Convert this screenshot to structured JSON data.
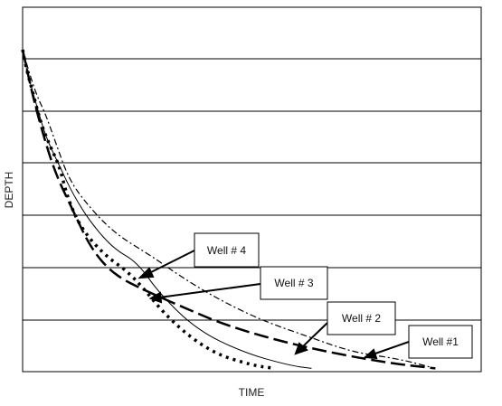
{
  "chart_data": {
    "type": "line",
    "title": "",
    "xlabel": "TIME",
    "ylabel": "DEPTH",
    "grid": "horizontal",
    "legend": "callouts",
    "series": [
      {
        "name": "Well # 4",
        "style": "dotted-heavy",
        "points": [
          [
            0,
            0
          ],
          [
            0.01,
            0.07
          ],
          [
            0.02,
            0.12
          ],
          [
            0.04,
            0.23
          ],
          [
            0.06,
            0.3
          ],
          [
            0.08,
            0.36
          ],
          [
            0.1,
            0.47
          ],
          [
            0.13,
            0.56
          ],
          [
            0.18,
            0.64
          ],
          [
            0.24,
            0.7
          ],
          [
            0.32,
            0.84
          ],
          [
            0.41,
            0.94
          ],
          [
            0.5,
            0.98
          ],
          [
            0.55,
            0.99
          ]
        ]
      },
      {
        "name": "Well # 3",
        "style": "solid-thin",
        "points": [
          [
            0,
            0
          ],
          [
            0.01,
            0.07
          ],
          [
            0.03,
            0.17
          ],
          [
            0.05,
            0.27
          ],
          [
            0.08,
            0.36
          ],
          [
            0.11,
            0.45
          ],
          [
            0.15,
            0.54
          ],
          [
            0.2,
            0.62
          ],
          [
            0.25,
            0.66
          ],
          [
            0.3,
            0.76
          ],
          [
            0.38,
            0.87
          ],
          [
            0.48,
            0.94
          ],
          [
            0.58,
            0.98
          ],
          [
            0.63,
            0.99
          ]
        ]
      },
      {
        "name": "Well # 2",
        "style": "dash-long",
        "points": [
          [
            0,
            0
          ],
          [
            0.02,
            0.13
          ],
          [
            0.04,
            0.24
          ],
          [
            0.07,
            0.38
          ],
          [
            0.11,
            0.5
          ],
          [
            0.15,
            0.62
          ],
          [
            0.2,
            0.7
          ],
          [
            0.27,
            0.75
          ],
          [
            0.35,
            0.8
          ],
          [
            0.45,
            0.86
          ],
          [
            0.6,
            0.92
          ],
          [
            0.78,
            0.97
          ],
          [
            0.9,
            0.99
          ]
        ]
      },
      {
        "name": "Well #1",
        "style": "dash-dot",
        "points": [
          [
            0,
            0
          ],
          [
            0.01,
            0.05
          ],
          [
            0.03,
            0.14
          ],
          [
            0.05,
            0.2
          ],
          [
            0.07,
            0.28
          ],
          [
            0.1,
            0.4
          ],
          [
            0.14,
            0.48
          ],
          [
            0.2,
            0.57
          ],
          [
            0.28,
            0.64
          ],
          [
            0.34,
            0.7
          ],
          [
            0.42,
            0.77
          ],
          [
            0.52,
            0.84
          ],
          [
            0.62,
            0.89
          ],
          [
            0.72,
            0.94
          ],
          [
            0.82,
            0.96
          ],
          [
            0.9,
            0.99
          ]
        ]
      }
    ]
  }
}
